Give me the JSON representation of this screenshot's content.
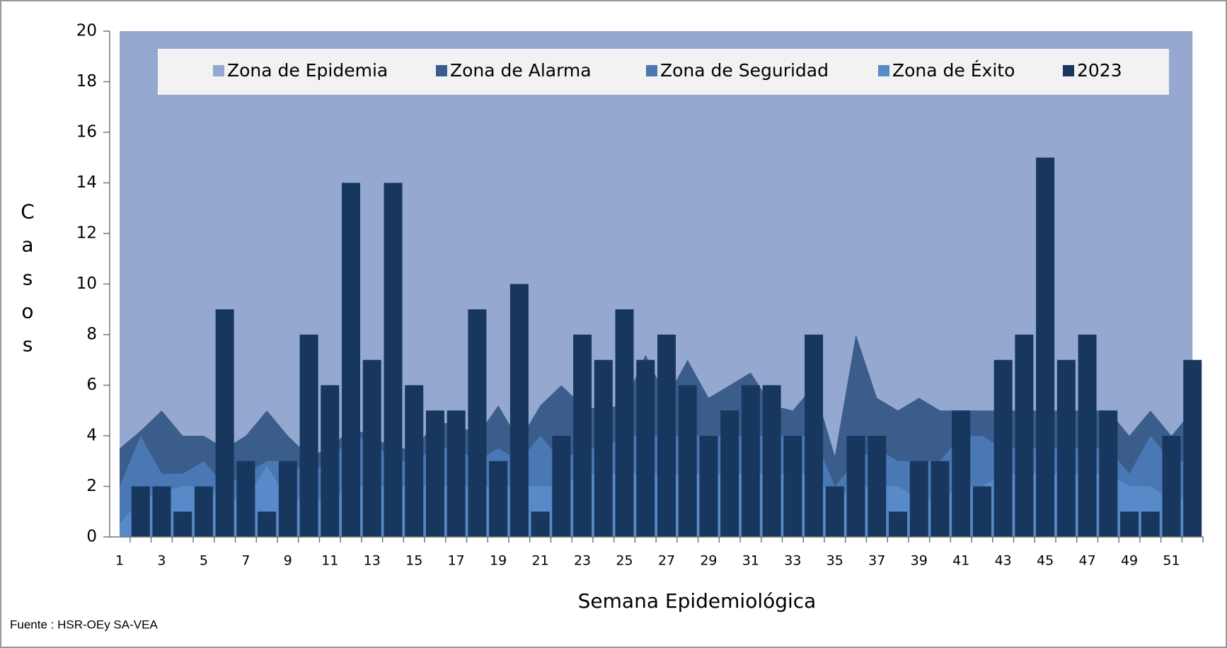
{
  "chart_data": {
    "type": "endemic-channel",
    "x_label": "Semana  Epidemiológica",
    "y_label": "Casos",
    "source": "Fuente : HSR-OEy SA-VEA",
    "legend": "top",
    "categories": [
      1,
      null,
      3,
      null,
      5,
      null,
      7,
      null,
      9,
      null,
      11,
      null,
      13,
      null,
      15,
      null,
      17,
      null,
      19,
      null,
      21,
      null,
      23,
      null,
      25,
      null,
      27,
      null,
      29,
      null,
      31,
      null,
      33,
      null,
      35,
      null,
      37,
      null,
      39,
      null,
      41,
      null,
      43,
      null,
      45,
      null,
      47,
      null,
      49,
      null,
      51,
      null
    ],
    "ylim": [
      0,
      20
    ],
    "yticks": [
      0,
      2,
      4,
      6,
      8,
      10,
      12,
      14,
      16,
      18,
      20
    ],
    "series": [
      {
        "name": "Zona de Epidemia",
        "kind": "area",
        "color": "#95a9d0",
        "values": [
          20,
          20,
          20,
          20,
          20,
          20,
          20,
          20,
          20,
          20,
          20,
          20,
          20,
          20,
          20,
          20,
          20,
          20,
          20,
          20,
          20,
          20,
          20,
          20,
          20,
          20,
          20,
          20,
          20,
          20,
          20,
          20,
          20,
          20,
          20,
          20,
          20,
          20,
          20,
          20,
          20,
          20,
          20,
          20,
          20,
          20,
          20,
          20,
          20,
          20,
          20,
          20
        ]
      },
      {
        "name": "Zona de Alarma",
        "kind": "area",
        "color": "#3a5d8c",
        "values": [
          3.5,
          4.2,
          5,
          4,
          4,
          3.5,
          4,
          5,
          4,
          3.2,
          3.5,
          4.3,
          4,
          3.5,
          3.5,
          4.5,
          4.5,
          4,
          5.2,
          3.8,
          5.2,
          6,
          5.2,
          5,
          5.3,
          7.2,
          5.5,
          7,
          5.5,
          6,
          6.5,
          5.2,
          5,
          6,
          3.2,
          8,
          5.5,
          5,
          5.5,
          5,
          5,
          5,
          5,
          5,
          5,
          5,
          5,
          5,
          4,
          5,
          4,
          5
        ]
      },
      {
        "name": "Zona de Seguridad",
        "kind": "area",
        "color": "#4a78b4",
        "values": [
          2,
          4,
          2.5,
          2.5,
          3,
          2,
          2.5,
          3,
          3,
          2.5,
          3,
          4,
          3.8,
          3,
          3,
          3.5,
          3.5,
          3,
          3.5,
          3,
          4,
          3,
          3.5,
          3.5,
          4,
          4,
          4,
          4,
          4,
          4,
          4,
          4,
          4,
          4,
          2,
          3,
          3.5,
          3,
          3,
          3,
          4,
          4,
          3.5,
          3.5,
          3.5,
          3.5,
          3.5,
          3.5,
          2.5,
          4,
          3,
          3
        ]
      },
      {
        "name": "Zona de Éxito",
        "kind": "area",
        "color": "#5889c9",
        "values": [
          0.5,
          1.5,
          1.8,
          2,
          2,
          1.5,
          1.5,
          2.8,
          1.5,
          1.5,
          1.5,
          2,
          2,
          2,
          2,
          2,
          2,
          2,
          2,
          2,
          2,
          2,
          2.5,
          2.5,
          2.5,
          2.5,
          2.5,
          2.5,
          2.5,
          2.5,
          2.5,
          2.5,
          2.5,
          2.5,
          1.5,
          2,
          2,
          2,
          1.5,
          1.5,
          2,
          2,
          2.5,
          2.5,
          2.5,
          2.5,
          2.5,
          2.5,
          2,
          2,
          1.5,
          1.5
        ]
      },
      {
        "name": "2023",
        "kind": "bar",
        "color": "#17375e",
        "values": [
          0,
          2,
          2,
          1,
          2,
          9,
          3,
          1,
          3,
          8,
          6,
          14,
          7,
          14,
          6,
          5,
          5,
          9,
          3,
          10,
          1,
          4,
          8,
          7,
          9,
          7,
          8,
          6,
          4,
          5,
          6,
          6,
          4,
          8,
          2,
          4,
          4,
          1,
          3,
          3,
          5,
          2,
          7,
          8,
          15,
          7,
          8,
          5,
          1,
          1,
          4,
          7
        ]
      }
    ]
  }
}
